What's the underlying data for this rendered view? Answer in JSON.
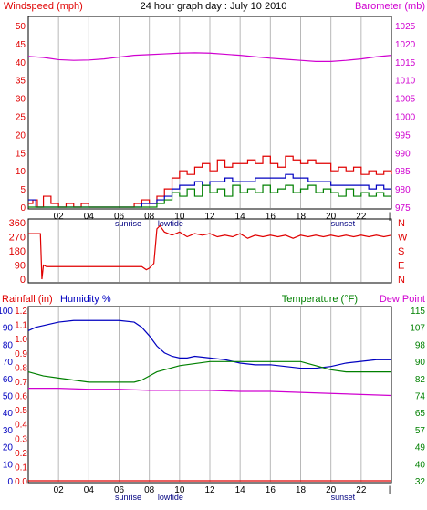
{
  "title": "24 hour graph day : July 10 2010",
  "colors": {
    "red": "#e00000",
    "blue": "#0000c0",
    "green": "#008000",
    "magenta": "#d000d0",
    "grid": "#b8b8b8",
    "frame": "#000000"
  },
  "x_tick_labels": [
    "02",
    "04",
    "06",
    "08",
    "10",
    "12",
    "14",
    "16",
    "18",
    "20",
    "22"
  ],
  "x_events": {
    "sunrise": "sunrise",
    "lowtide": "lowtide",
    "sunset": "sunset"
  },
  "chart_data": [
    {
      "type": "line",
      "name": "wind-barometer",
      "left_label": "Windspeed (mph)",
      "right_label": "Barometer (mb)",
      "left_ticks": [
        "0",
        "5",
        "10",
        "15",
        "20",
        "25",
        "30",
        "35",
        "40",
        "45",
        "50"
      ],
      "right_ticks": [
        "975",
        "980",
        "985",
        "990",
        "995",
        "1000",
        "1005",
        "1010",
        "1015",
        "1020",
        "1025"
      ],
      "ylim_left": [
        0,
        50
      ],
      "ylim_right": [
        975,
        1025
      ],
      "x_range_hours": [
        0,
        24
      ],
      "series": [
        {
          "color": "red",
          "axis": "left",
          "x": [
            0,
            0.3,
            0.6,
            1,
            1.5,
            2,
            2.5,
            3,
            3.5,
            4,
            4.5,
            5,
            5.5,
            6,
            6.5,
            7,
            7.5,
            8,
            8.5,
            9,
            9.5,
            10,
            10.5,
            11,
            11.5,
            12,
            12.5,
            13,
            13.5,
            14,
            14.5,
            15,
            15.5,
            16,
            16.5,
            17,
            17.5,
            18,
            18.5,
            19,
            19.5,
            20,
            20.5,
            21,
            21.5,
            22,
            22.5,
            23,
            23.5,
            24
          ],
          "values": [
            1,
            2,
            0,
            3,
            1,
            0,
            1,
            0,
            1,
            0,
            0,
            0,
            0,
            0,
            0,
            1,
            2,
            1,
            3,
            5,
            8,
            10,
            9,
            11,
            12,
            10,
            13,
            11,
            12,
            12,
            13,
            12,
            14,
            12,
            11,
            14,
            13,
            12,
            13,
            12,
            12,
            10,
            11,
            10,
            11,
            9,
            10,
            9,
            10,
            9
          ]
        },
        {
          "color": "blue",
          "axis": "left",
          "x": [
            0,
            0.5,
            1,
            2,
            3,
            4,
            5,
            6,
            7,
            7.5,
            8,
            8.5,
            9,
            9.5,
            10,
            10.5,
            11,
            11.5,
            12,
            12.5,
            13,
            13.5,
            14,
            14.5,
            15,
            15.5,
            16,
            16.5,
            17,
            17.5,
            18,
            18.5,
            19,
            19.5,
            20,
            20.5,
            21,
            21.5,
            22,
            22.5,
            23,
            23.5,
            24
          ],
          "values": [
            2,
            0,
            0,
            0,
            0,
            0,
            0,
            0,
            0,
            1,
            1,
            2,
            3,
            5,
            6,
            6,
            7,
            6,
            7,
            7,
            8,
            7,
            7,
            7,
            8,
            8,
            8,
            8,
            9,
            8,
            8,
            7,
            7,
            7,
            6,
            6,
            6,
            6,
            6,
            5,
            6,
            5,
            5
          ]
        },
        {
          "color": "green",
          "axis": "left",
          "x": [
            0,
            1,
            2,
            3,
            4,
            5,
            6,
            7,
            7.5,
            8,
            8.5,
            9,
            9.5,
            10,
            10.5,
            11,
            11.5,
            12,
            12.5,
            13,
            13.5,
            14,
            14.5,
            15,
            15.5,
            16,
            16.5,
            17,
            17.5,
            18,
            18.5,
            19,
            19.5,
            20,
            20.5,
            21,
            21.5,
            22,
            22.5,
            23,
            23.5,
            24
          ],
          "values": [
            0,
            0,
            0,
            0,
            0,
            0,
            0,
            0,
            0,
            0,
            1,
            2,
            4,
            3,
            5,
            3,
            6,
            4,
            5,
            3,
            6,
            4,
            5,
            4,
            6,
            4,
            5,
            6,
            4,
            5,
            6,
            4,
            5,
            4,
            3,
            5,
            3,
            4,
            3,
            4,
            3,
            3
          ]
        },
        {
          "color": "magenta",
          "axis": "right",
          "x": [
            0,
            1,
            2,
            3,
            4,
            5,
            6,
            7,
            8,
            9,
            10,
            11,
            12,
            13,
            14,
            15,
            16,
            17,
            18,
            19,
            20,
            21,
            22,
            23,
            24
          ],
          "values": [
            1016.5,
            1016.2,
            1015.6,
            1015.4,
            1015.5,
            1015.8,
            1016.3,
            1016.8,
            1017.0,
            1017.2,
            1017.4,
            1017.5,
            1017.4,
            1017.1,
            1016.8,
            1016.4,
            1016.0,
            1015.7,
            1015.4,
            1015.1,
            1015.1,
            1015.4,
            1015.8,
            1016.4,
            1016.8
          ]
        }
      ]
    },
    {
      "type": "line",
      "name": "wind-direction",
      "left_ticks": [
        "0",
        "90",
        "180",
        "270",
        "360"
      ],
      "right_ticks": [
        "N",
        "W",
        "S",
        "E",
        "N"
      ],
      "ylim_left": [
        0,
        360
      ],
      "series": [
        {
          "color": "red",
          "axis": "left",
          "x": [
            0,
            0.8,
            0.9,
            1.0,
            1.2,
            2,
            3,
            4,
            5,
            6,
            7,
            7.5,
            7.8,
            8.0,
            8.3,
            8.5,
            8.7,
            9.0,
            9.5,
            10,
            10.5,
            11,
            11.5,
            12,
            12.5,
            13,
            13.5,
            14,
            14.5,
            15,
            15.5,
            16,
            16.5,
            17,
            17.5,
            18,
            18.5,
            19,
            19.5,
            20,
            20.5,
            21,
            21.5,
            22,
            22.5,
            23,
            23.5,
            24
          ],
          "values": [
            290,
            290,
            0,
            90,
            80,
            80,
            80,
            80,
            80,
            80,
            80,
            80,
            60,
            70,
            100,
            320,
            340,
            300,
            280,
            300,
            270,
            290,
            280,
            290,
            270,
            280,
            270,
            290,
            260,
            280,
            270,
            280,
            270,
            280,
            260,
            280,
            270,
            280,
            270,
            280,
            270,
            280,
            270,
            280,
            270,
            280,
            270,
            280
          ]
        }
      ]
    },
    {
      "type": "line",
      "name": "humidity-temperature",
      "left_label_rain": "Rainfall (in)",
      "left_label_humidity": "Humidity %",
      "right_label_temp": "Temperature (°F)",
      "right_label_dew": "Dew Point",
      "rain_ticks": [
        "0.0",
        "0.1",
        "0.2",
        "0.3",
        "0.4",
        "0.5",
        "0.6",
        "0.7",
        "0.8",
        "0.9",
        "1.0",
        "1.1",
        "1.2"
      ],
      "humidity_ticks": [
        "0",
        "10",
        "20",
        "30",
        "40",
        "50",
        "60",
        "70",
        "80",
        "90",
        "100"
      ],
      "temp_ticks": [
        "32",
        "40",
        "49",
        "57",
        "65",
        "74",
        "82",
        "90",
        "98",
        "107",
        "115"
      ],
      "ylim_humidity": [
        0,
        100
      ],
      "ylim_temp": [
        32,
        115
      ],
      "series": [
        {
          "color": "blue",
          "axis": "humidity",
          "x": [
            0,
            0.5,
            1,
            1.5,
            2,
            3,
            4,
            5,
            6,
            7,
            7.5,
            8,
            8.5,
            9,
            9.5,
            10,
            10.5,
            11,
            12,
            13,
            14,
            15,
            16,
            17,
            18,
            19,
            20,
            21,
            22,
            23,
            24
          ],
          "values": [
            88,
            90,
            91,
            92,
            93,
            94,
            94,
            94,
            94,
            93,
            90,
            85,
            79,
            75,
            73,
            72,
            72,
            73,
            72,
            71,
            69,
            68,
            68,
            67,
            66,
            66,
            67,
            69,
            70,
            71,
            71
          ]
        },
        {
          "color": "green",
          "axis": "temp",
          "x": [
            0,
            1,
            2,
            3,
            4,
            5,
            6,
            7,
            7.5,
            8,
            8.5,
            9,
            9.5,
            10,
            11,
            12,
            13,
            14,
            15,
            16,
            17,
            18,
            18.5,
            19,
            19.5,
            20,
            21,
            22,
            23,
            24
          ],
          "values": [
            85,
            83,
            82,
            81,
            80,
            80,
            80,
            80,
            81,
            83,
            85,
            86,
            87,
            88,
            89,
            90,
            90,
            90,
            90,
            90,
            90,
            90,
            89,
            88,
            87,
            86,
            85,
            85,
            85,
            85
          ]
        },
        {
          "color": "magenta",
          "axis": "temp",
          "x": [
            0,
            2,
            4,
            6,
            8,
            10,
            12,
            14,
            16,
            18,
            20,
            22,
            24
          ],
          "values": [
            77,
            77,
            76.5,
            76.5,
            76,
            76,
            76,
            75.5,
            75.5,
            75,
            74.5,
            74,
            73.5
          ]
        },
        {
          "color": "red",
          "axis": "humidity",
          "x": [
            0,
            24
          ],
          "values": [
            0,
            0
          ]
        }
      ]
    }
  ]
}
